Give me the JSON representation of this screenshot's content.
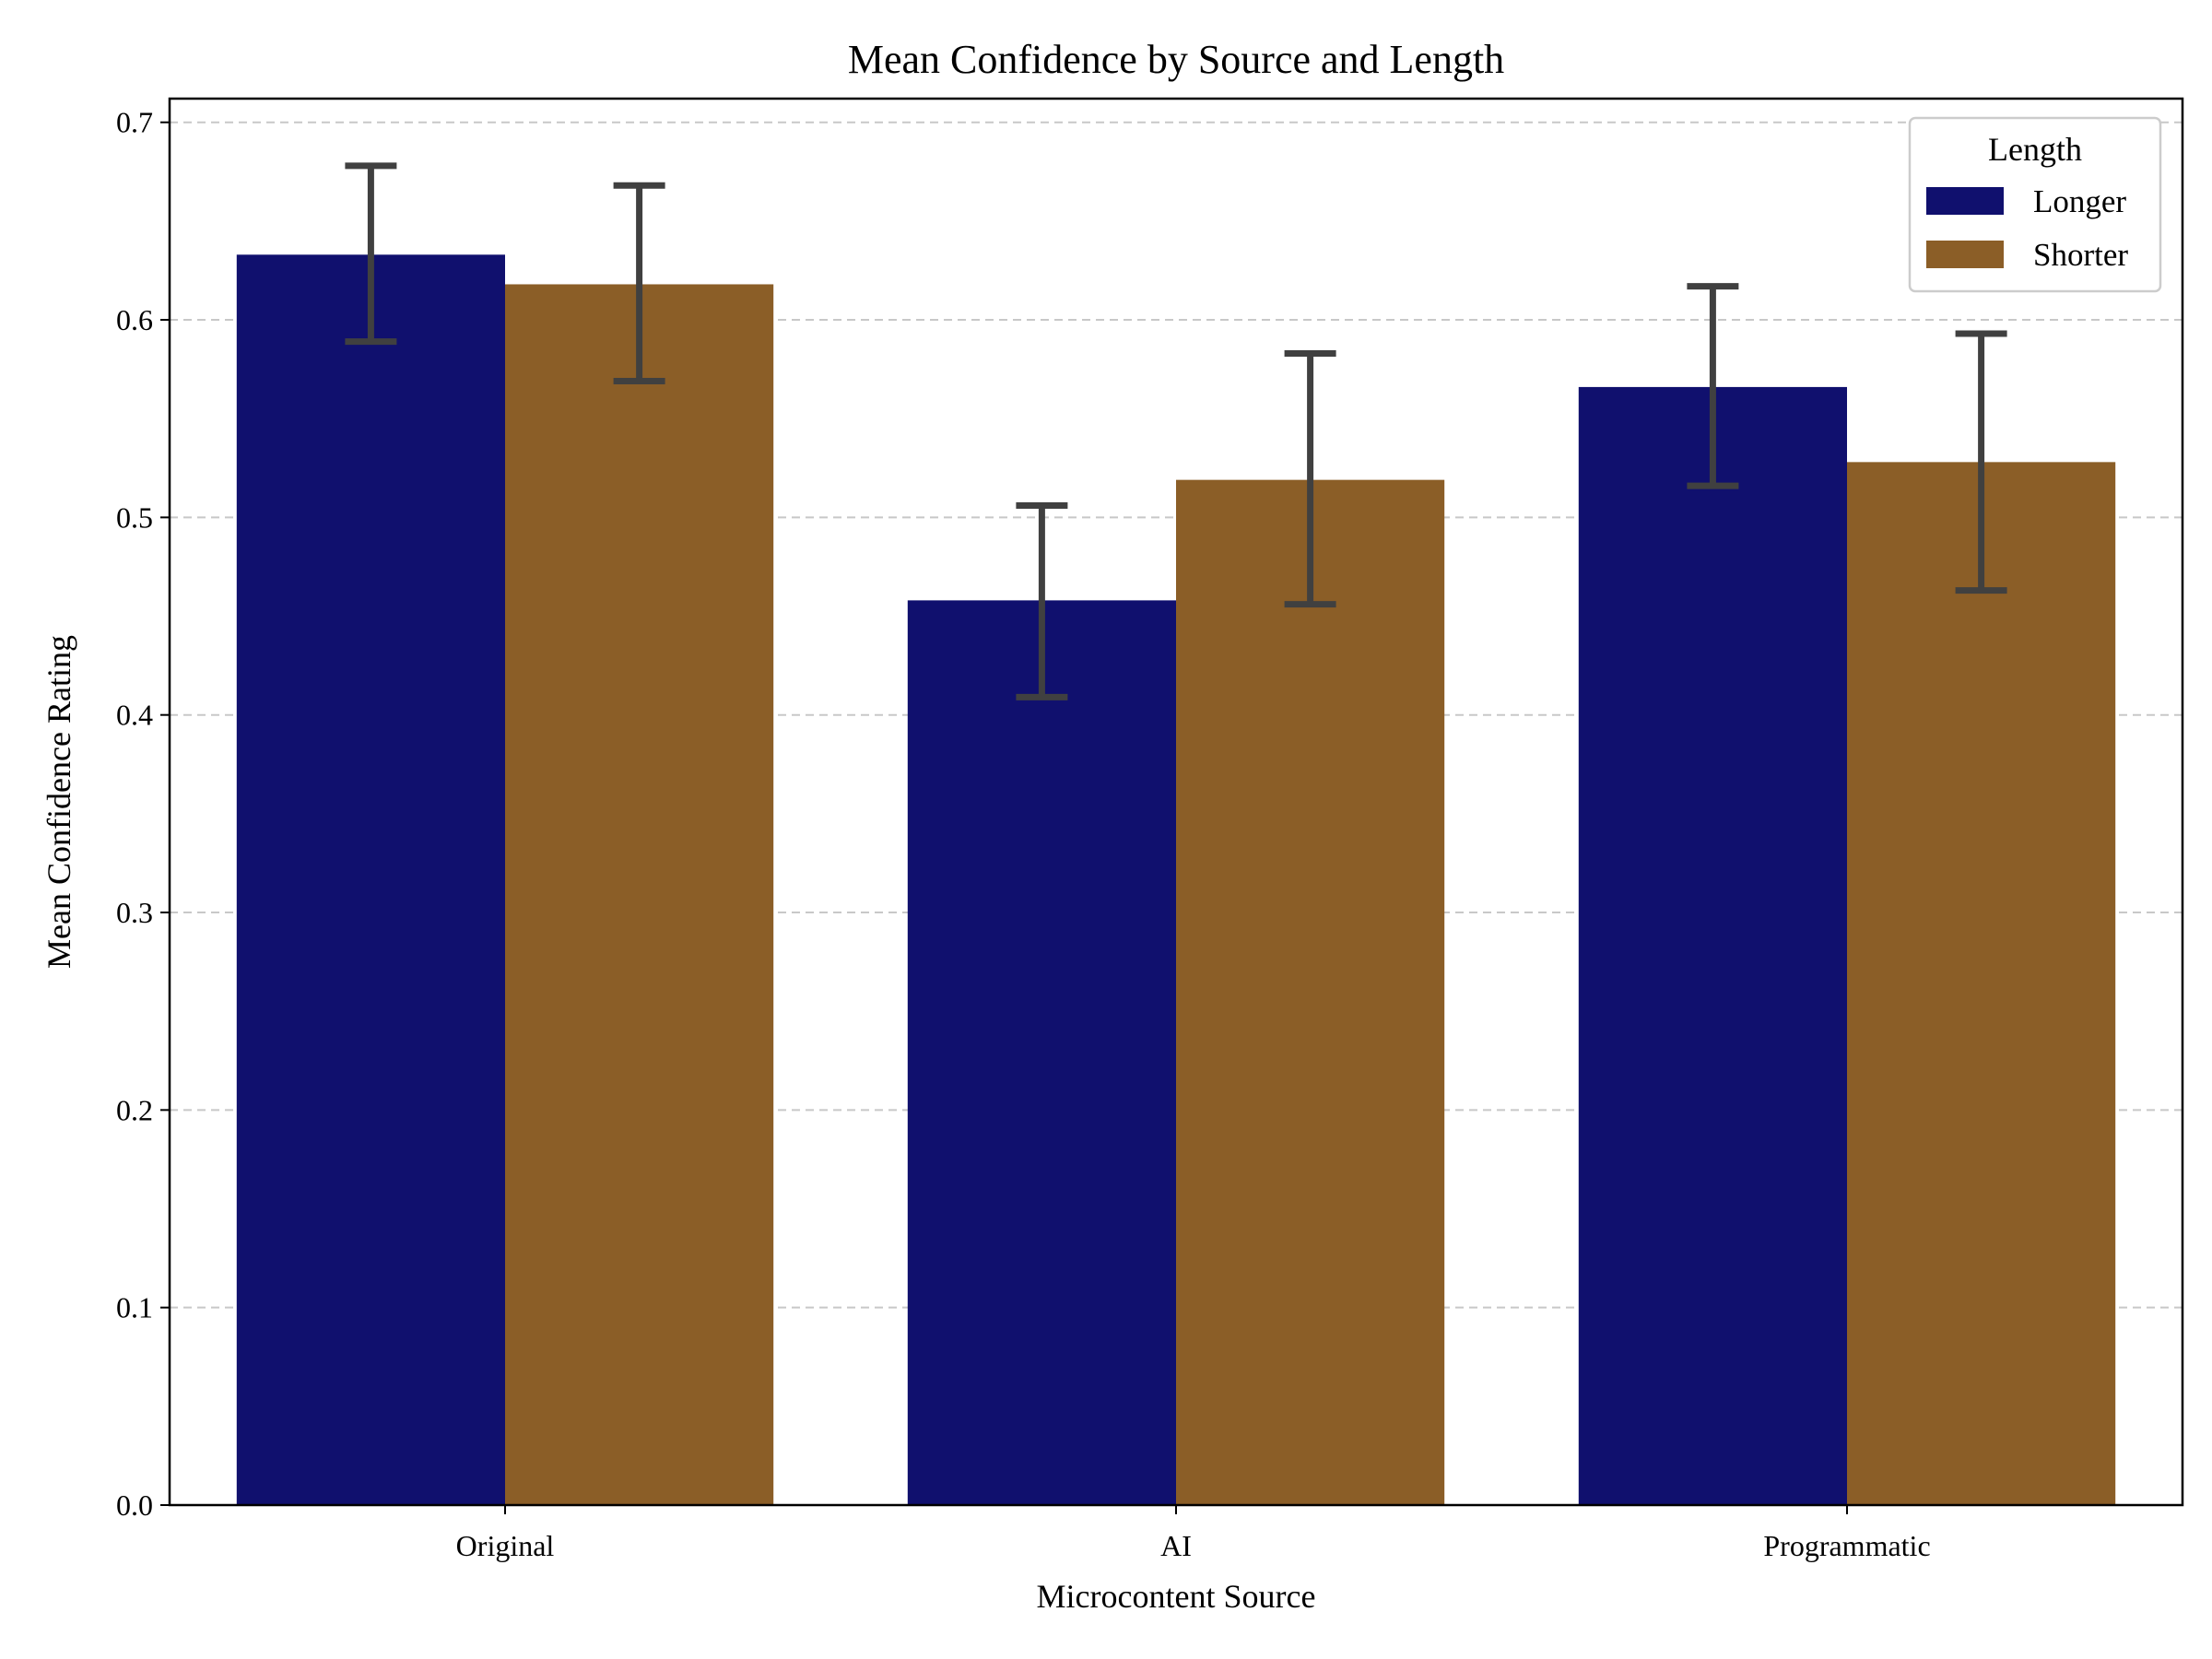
{
  "chart_data": {
    "type": "bar",
    "title": "Mean Confidence by Source and Length",
    "xlabel": "Microcontent Source",
    "ylabel": "Mean Confidence Rating",
    "categories": [
      "Original",
      "AI",
      "Programmatic"
    ],
    "ylim": [
      0,
      0.712
    ],
    "yticks": [
      "0.0",
      "0.1",
      "0.2",
      "0.3",
      "0.4",
      "0.5",
      "0.6",
      "0.7"
    ],
    "grid": "y-dashed",
    "legend": {
      "title": "Length",
      "position": "top-right"
    },
    "series": [
      {
        "name": "Longer",
        "color": "#10106e",
        "values": [
          0.633,
          0.458,
          0.566
        ],
        "error_low": [
          0.589,
          0.409,
          0.516
        ],
        "error_high": [
          0.678,
          0.506,
          0.617
        ]
      },
      {
        "name": "Shorter",
        "color": "#8b5e27",
        "values": [
          0.618,
          0.519,
          0.528
        ],
        "error_low": [
          0.569,
          0.456,
          0.463
        ],
        "error_high": [
          0.668,
          0.583,
          0.593
        ]
      }
    ],
    "error_bar_color": "#404040"
  }
}
